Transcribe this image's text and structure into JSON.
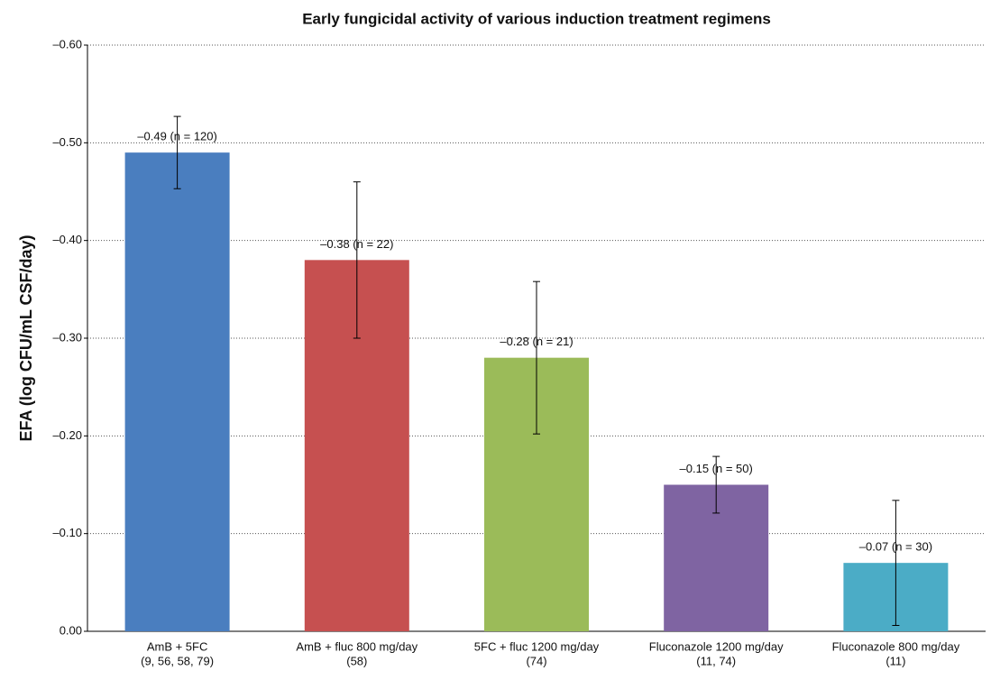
{
  "chart_data": {
    "type": "bar",
    "title": "Early fungicidal activity of various induction treatment regimens",
    "ylabel": "EFA (log CFU/mL CSF/day)",
    "categories": [
      [
        "AmB + 5FC",
        "(9, 56, 58, 79)"
      ],
      [
        "AmB + fluc 800 mg/day",
        "(58)"
      ],
      [
        "5FC + fluc 1200 mg/day",
        "(74)"
      ],
      [
        "Fluconazole 1200 mg/day",
        "(11, 74)"
      ],
      [
        "Fluconazole 800 mg/day",
        "(11)"
      ]
    ],
    "values": [
      -0.49,
      -0.38,
      -0.28,
      -0.15,
      -0.07
    ],
    "value_labels": [
      "–0.49 (n = 120)",
      "–0.38 (n = 22)",
      "–0.28 (n = 21)",
      "–0.15 (n = 50)",
      "–0.07 (n = 30)"
    ],
    "errors": [
      0.037,
      0.08,
      0.078,
      0.029,
      0.064
    ],
    "colors": [
      "#4a7ebf",
      "#c65050",
      "#9bbb59",
      "#7f64a2",
      "#4bacc6"
    ],
    "ylim": [
      0,
      -0.6
    ],
    "yticks": [
      {
        "value": 0,
        "label": "0.00"
      },
      {
        "value": -0.1,
        "label": "–0.10"
      },
      {
        "value": -0.2,
        "label": "–0.20"
      },
      {
        "value": -0.3,
        "label": "–0.30"
      },
      {
        "value": -0.4,
        "label": "–0.40"
      },
      {
        "value": -0.5,
        "label": "–0.50"
      },
      {
        "value": -0.6,
        "label": "–0.60"
      }
    ],
    "grid": true
  }
}
